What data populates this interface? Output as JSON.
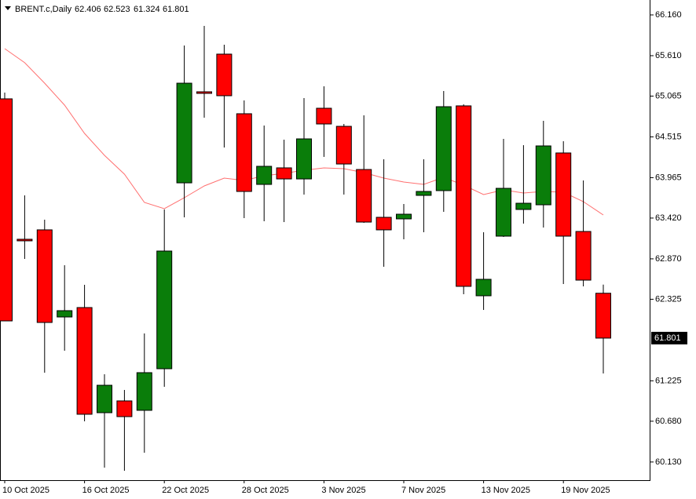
{
  "chart_data": {
    "type": "candlestick",
    "symbol": "BRENT.c,Daily",
    "categories": [
      "10 Oct 2025",
      null,
      null,
      null,
      "16 Oct 2025",
      null,
      null,
      null,
      "22 Oct 2025",
      null,
      null,
      null,
      "28 Oct 2025",
      null,
      null,
      null,
      "3 Nov 2025",
      null,
      null,
      null,
      "7 Nov 2025",
      null,
      null,
      null,
      "13 Nov 2025",
      null,
      null,
      null,
      "19 Nov 2025",
      null,
      null
    ],
    "open": [
      65.028,
      63.134,
      63.261,
      62.086,
      62.213,
      60.795,
      60.954,
      60.827,
      61.388,
      63.895,
      65.123,
      65.631,
      64.827,
      63.874,
      64.097,
      63.948,
      64.901,
      64.657,
      64.075,
      63.43,
      63.409,
      63.726,
      63.79,
      64.933,
      62.372,
      63.176,
      63.536,
      63.599,
      64.298,
      63.239,
      62.406
    ],
    "high": [
      65.112,
      63.726,
      63.398,
      62.784,
      62.52,
      61.313,
      61.102,
      61.864,
      63.536,
      65.747,
      66.012,
      65.758,
      65.007,
      64.668,
      64.477,
      65.038,
      65.197,
      64.689,
      64.806,
      64.213,
      63.61,
      64.213,
      65.134,
      64.954,
      63.229,
      64.488,
      64.403,
      64.731,
      64.456,
      63.927,
      62.523
    ],
    "low": [
      62.03,
      62.869,
      61.335,
      61.631,
      60.679,
      60.054,
      60.012,
      60.255,
      61.144,
      63.43,
      64.774,
      64.372,
      63.419,
      63.377,
      63.366,
      63.737,
      64.245,
      63.737,
      63.356,
      62.763,
      63.134,
      63.229,
      63.504,
      62.393,
      62.181,
      63.165,
      63.345,
      63.292,
      62.53,
      62.499,
      61.324
    ],
    "close": [
      62.033,
      63.12,
      62.012,
      62.171,
      60.774,
      61.165,
      60.742,
      61.335,
      62.975,
      65.239,
      65.102,
      65.07,
      63.779,
      64.118,
      63.948,
      64.488,
      64.689,
      64.149,
      63.366,
      63.261,
      63.472,
      63.779,
      64.922,
      62.499,
      62.594,
      63.821,
      63.62,
      64.393,
      63.176,
      62.583,
      61.801
    ],
    "bull_color": "#0a7d0a",
    "bear_color": "#ff0000",
    "ma": {
      "color": "#ff7070",
      "values": [
        65.705,
        65.515,
        65.239,
        64.943,
        64.562,
        64.266,
        64.012,
        63.631,
        63.546,
        63.694,
        63.853,
        63.959,
        63.927,
        63.991,
        64.022,
        64.065,
        64.097,
        64.086,
        64.033,
        63.959,
        63.906,
        63.874,
        63.97,
        63.864,
        63.737,
        63.8,
        63.758,
        63.779,
        63.769,
        63.642,
        63.462
      ]
    },
    "ylim": [
      59.885,
      66.361
    ],
    "yticks": [
      {
        "value": 66.16,
        "label": "66.160"
      },
      {
        "value": 65.61,
        "label": "65.610"
      },
      {
        "value": 65.065,
        "label": "65.065"
      },
      {
        "value": 64.515,
        "label": "64.515"
      },
      {
        "value": 63.965,
        "label": "63.965"
      },
      {
        "value": 63.42,
        "label": "63.420"
      },
      {
        "value": 62.87,
        "label": "62.870"
      },
      {
        "value": 62.325,
        "label": "62.325"
      },
      {
        "value": 61.225,
        "label": "61.225"
      },
      {
        "value": 60.68,
        "label": "60.680"
      },
      {
        "value": 60.13,
        "label": "60.130"
      }
    ]
  }
}
